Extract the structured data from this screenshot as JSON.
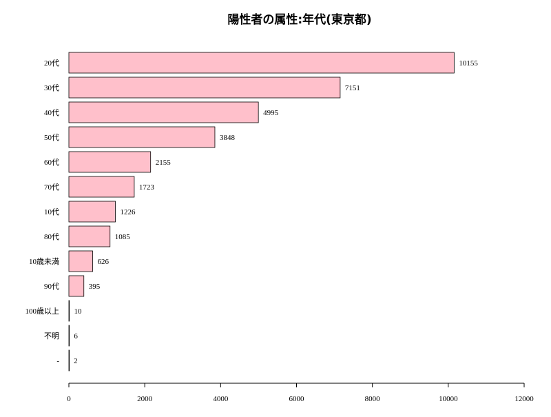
{
  "chart_data": {
    "type": "bar",
    "orientation": "horizontal",
    "title": "陽性者の属性:年代(東京都)",
    "xlabel": "",
    "ylabel": "",
    "categories": [
      "20代",
      "30代",
      "40代",
      "50代",
      "60代",
      "70代",
      "10代",
      "80代",
      "10歳未満",
      "90代",
      "100歳以上",
      "不明",
      "-"
    ],
    "values": [
      10155,
      7151,
      4995,
      3848,
      2155,
      1723,
      1226,
      1085,
      626,
      395,
      10,
      6,
      2
    ],
    "xlim": [
      0,
      12000
    ],
    "xticks": [
      0,
      2000,
      4000,
      6000,
      8000,
      10000,
      12000
    ],
    "grid": false,
    "bar_color": "#ffc0cb",
    "bar_edge_color": "#000000"
  }
}
